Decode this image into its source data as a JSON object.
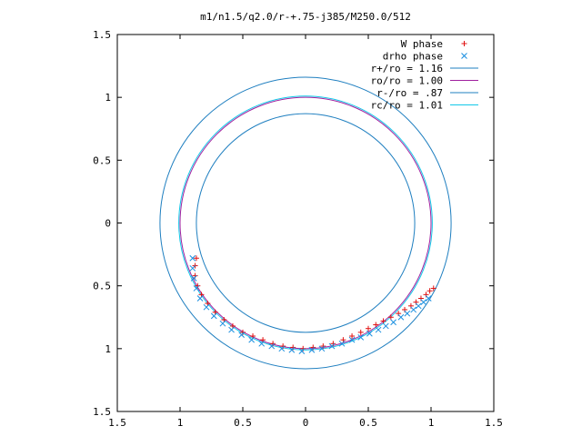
{
  "chart_data": {
    "type": "scatter",
    "title": "m1/n1.5/q2.0/r-+.75-j385/M250.0/512",
    "xlabel": "",
    "ylabel": "",
    "xlim": [
      -1.5,
      1.5
    ],
    "ylim": [
      -1.5,
      1.5
    ],
    "xticks": [
      -1.5,
      -1,
      -0.5,
      0,
      0.5,
      1,
      1.5
    ],
    "yticks": [
      1.5,
      1,
      0.5,
      0,
      -0.5,
      -1,
      -1.5
    ],
    "xtick_labels": [
      "1.5",
      "1",
      "0.5",
      "0",
      "0.5",
      "1",
      "1.5"
    ],
    "ytick_labels": [
      "1.5",
      "1",
      "0.5",
      "0",
      "0.5",
      "1",
      "1.5"
    ],
    "grid": false,
    "legend_position": "top-right",
    "circles": [
      {
        "name": "r+/ro = 1.16",
        "radius": 1.16,
        "color": "#1f7fc0"
      },
      {
        "name": "ro/ro = 1.00",
        "radius": 1.0,
        "color": "#a0209f"
      },
      {
        "name": "r-/ro = .87",
        "radius": 0.87,
        "color": "#1f7fc0"
      },
      {
        "name": "rc/ro = 1.01",
        "radius": 1.01,
        "color": "#12c8e8"
      }
    ],
    "series": [
      {
        "name": "W phase",
        "marker": "+",
        "color": "#e01010",
        "points": [
          [
            1.02,
            -0.52
          ],
          [
            0.99,
            -0.54
          ],
          [
            0.96,
            -0.57
          ],
          [
            0.92,
            -0.6
          ],
          [
            0.88,
            -0.63
          ],
          [
            0.84,
            -0.66
          ],
          [
            0.79,
            -0.69
          ],
          [
            0.74,
            -0.72
          ],
          [
            0.68,
            -0.75
          ],
          [
            0.62,
            -0.78
          ],
          [
            0.56,
            -0.81
          ],
          [
            0.5,
            -0.84
          ],
          [
            0.44,
            -0.87
          ],
          [
            0.37,
            -0.9
          ],
          [
            0.3,
            -0.93
          ],
          [
            0.22,
            -0.96
          ],
          [
            0.14,
            -0.98
          ],
          [
            0.06,
            -0.99
          ],
          [
            -0.02,
            -1.0
          ],
          [
            -0.1,
            -0.99
          ],
          [
            -0.18,
            -0.98
          ],
          [
            -0.26,
            -0.96
          ],
          [
            -0.34,
            -0.93
          ],
          [
            -0.42,
            -0.9
          ],
          [
            -0.5,
            -0.87
          ],
          [
            -0.58,
            -0.82
          ],
          [
            -0.65,
            -0.77
          ],
          [
            -0.72,
            -0.71
          ],
          [
            -0.78,
            -0.64
          ],
          [
            -0.83,
            -0.57
          ],
          [
            -0.86,
            -0.5
          ],
          [
            -0.88,
            -0.42
          ],
          [
            -0.88,
            -0.34
          ],
          [
            -0.87,
            -0.28
          ]
        ]
      },
      {
        "name": "drho phase",
        "marker": "x",
        "color": "#1a8fe0",
        "points": [
          [
            0.98,
            -0.6
          ],
          [
            0.94,
            -0.63
          ],
          [
            0.9,
            -0.66
          ],
          [
            0.86,
            -0.69
          ],
          [
            0.81,
            -0.72
          ],
          [
            0.76,
            -0.75
          ],
          [
            0.7,
            -0.79
          ],
          [
            0.64,
            -0.82
          ],
          [
            0.58,
            -0.85
          ],
          [
            0.51,
            -0.88
          ],
          [
            0.44,
            -0.91
          ],
          [
            0.37,
            -0.93
          ],
          [
            0.29,
            -0.96
          ],
          [
            0.21,
            -0.98
          ],
          [
            0.13,
            -1.0
          ],
          [
            0.05,
            -1.01
          ],
          [
            -0.03,
            -1.02
          ],
          [
            -0.11,
            -1.01
          ],
          [
            -0.19,
            -1.0
          ],
          [
            -0.27,
            -0.98
          ],
          [
            -0.35,
            -0.96
          ],
          [
            -0.43,
            -0.93
          ],
          [
            -0.51,
            -0.89
          ],
          [
            -0.59,
            -0.85
          ],
          [
            -0.66,
            -0.8
          ],
          [
            -0.73,
            -0.74
          ],
          [
            -0.79,
            -0.67
          ],
          [
            -0.84,
            -0.6
          ],
          [
            -0.87,
            -0.52
          ],
          [
            -0.89,
            -0.44
          ],
          [
            -0.9,
            -0.36
          ],
          [
            -0.9,
            -0.28
          ]
        ]
      }
    ]
  }
}
